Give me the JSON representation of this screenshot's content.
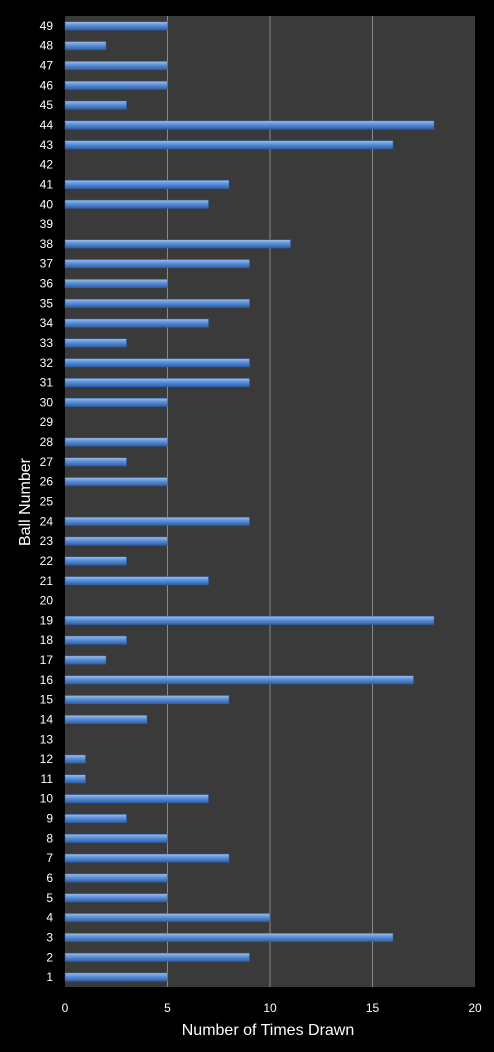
{
  "chart_data": {
    "type": "bar",
    "orientation": "horizontal",
    "xlabel": "Number of Times Drawn",
    "ylabel": "Ball Number",
    "xlim": [
      0,
      20
    ],
    "x_ticks": [
      "0",
      "5",
      "10",
      "15",
      "20"
    ],
    "grid": "vertical major gridlines",
    "legend": "none",
    "colors": {
      "background": "#000000",
      "plot_area": "#3a3a3a",
      "bar": "#5b8fd6",
      "grid": "#8a8a8a",
      "text": "#ffffff"
    },
    "categories": [
      "1",
      "2",
      "3",
      "4",
      "5",
      "6",
      "7",
      "8",
      "9",
      "10",
      "11",
      "12",
      "13",
      "14",
      "15",
      "16",
      "17",
      "18",
      "19",
      "20",
      "21",
      "22",
      "23",
      "24",
      "25",
      "26",
      "27",
      "28",
      "29",
      "30",
      "31",
      "32",
      "33",
      "34",
      "35",
      "36",
      "37",
      "38",
      "39",
      "40",
      "41",
      "42",
      "43",
      "44",
      "45",
      "46",
      "47",
      "48",
      "49"
    ],
    "values": [
      5,
      9,
      16,
      10,
      5,
      5,
      8,
      5,
      3,
      7,
      1,
      1,
      0,
      4,
      8,
      17,
      2,
      3,
      18,
      0,
      7,
      3,
      5,
      9,
      0,
      5,
      3,
      5,
      0,
      5,
      9,
      9,
      3,
      7,
      9,
      5,
      9,
      11,
      0,
      7,
      8,
      0,
      16,
      18,
      3,
      5,
      5,
      2,
      5
    ]
  }
}
